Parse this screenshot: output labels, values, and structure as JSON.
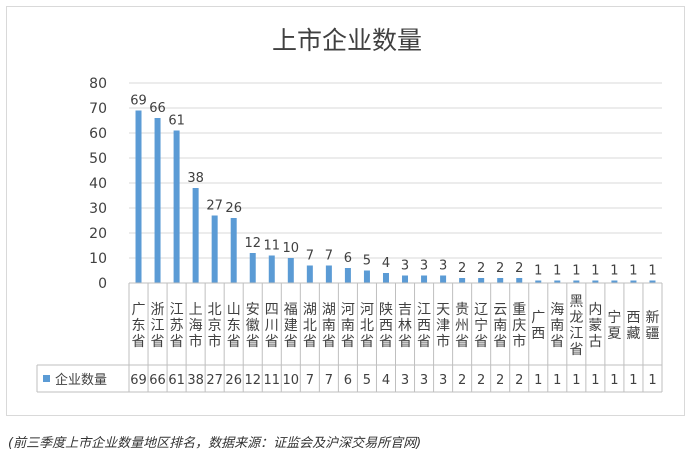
{
  "chart_data": {
    "type": "bar",
    "title": "上市企业数量",
    "xlabel": "",
    "ylabel": "",
    "ylim": [
      0,
      80
    ],
    "yticks": [
      0,
      10,
      20,
      30,
      40,
      50,
      60,
      70,
      80
    ],
    "grid": true,
    "legend": "bottom-left",
    "bar_color": "#5b9bd5",
    "categories": [
      "广东省",
      "浙江省",
      "江苏省",
      "上海市",
      "北京市",
      "山东省",
      "安徽省",
      "四川省",
      "福建省",
      "湖北省",
      "湖南省",
      "河南省",
      "河北省",
      "陕西省",
      "吉林省",
      "江西省",
      "天津市",
      "贵州省",
      "辽宁省",
      "云南省",
      "重庆市",
      "广西",
      "海南省",
      "黑龙江省",
      "内蒙古",
      "宁夏",
      "西藏",
      "新疆"
    ],
    "series": [
      {
        "name": "企业数量",
        "values": [
          69,
          66,
          61,
          38,
          27,
          26,
          12,
          11,
          10,
          7,
          7,
          6,
          5,
          4,
          3,
          3,
          3,
          2,
          2,
          2,
          2,
          1,
          1,
          1,
          1,
          1,
          1,
          1
        ]
      }
    ]
  },
  "caption": "(前三季度上市企业数量地区排名，数据来源：证监会及沪深交易所官网)"
}
